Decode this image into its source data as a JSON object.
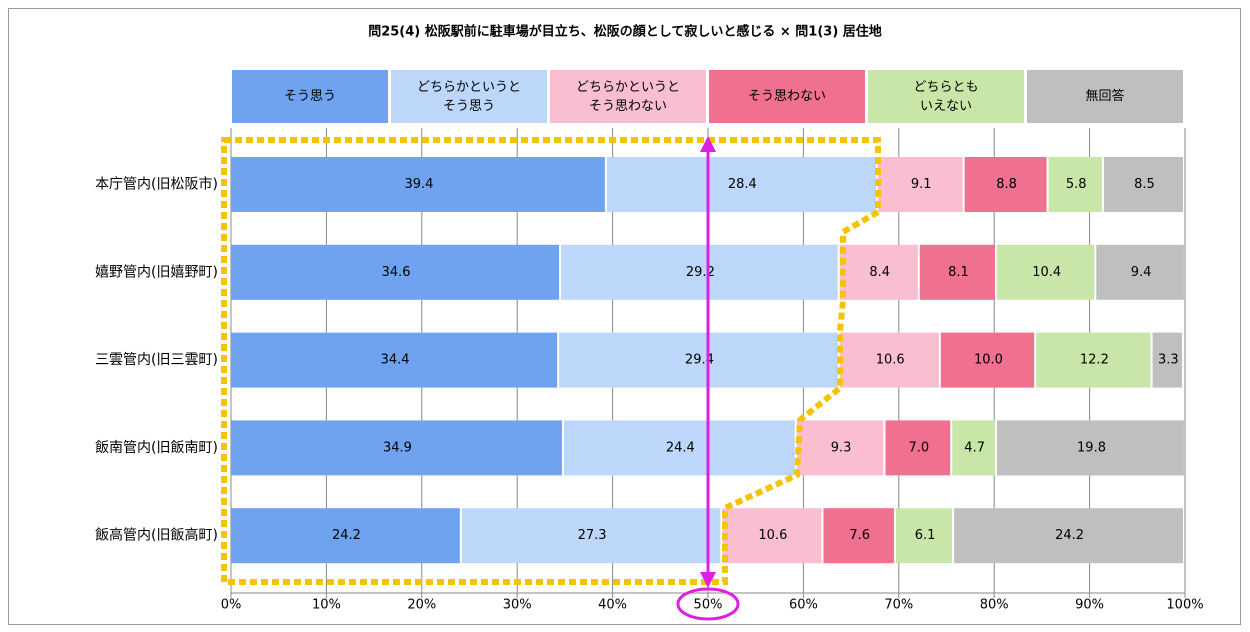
{
  "chart_data": {
    "type": "bar",
    "orientation": "horizontal",
    "stacked": true,
    "title": "問25(4) 松阪駅前に駐車場が目立ち、松阪の顔として寂しいと感じる × 問1(3) 居住地",
    "categories": [
      "本庁管内(旧松阪市)",
      "嬉野管内(旧嬉野町)",
      "三雲管内(旧三雲町)",
      "飯南管内(旧飯南町)",
      "飯高管内(旧飯高町)"
    ],
    "series": [
      {
        "name": "そう思う",
        "color": "#6fa3f0",
        "values": [
          39.4,
          34.6,
          34.4,
          34.9,
          24.2
        ]
      },
      {
        "name": "どちらかというと\nそう思う",
        "color": "#bdd7fb",
        "values": [
          28.4,
          29.2,
          29.4,
          24.4,
          27.3
        ]
      },
      {
        "name": "どちらかというと\nそう思わない",
        "color": "#f9bfd0",
        "values": [
          9.1,
          8.4,
          10.6,
          9.3,
          10.6
        ]
      },
      {
        "name": "そう思わない",
        "color": "#f07090",
        "values": [
          8.8,
          8.1,
          10,
          7,
          7.6
        ],
        "value_labels": [
          "8.8",
          "8.1",
          "10.0",
          "7.0",
          "7.6"
        ]
      },
      {
        "name": "どちらとも\nいえない",
        "color": "#c8e6a8",
        "values": [
          5.8,
          10.4,
          12.2,
          4.7,
          6.1
        ]
      },
      {
        "name": "無回答",
        "color": "#bfbfbf",
        "values": [
          8.5,
          9.4,
          3.3,
          19.8,
          24.2
        ]
      }
    ],
    "xlim": [
      0,
      100
    ],
    "xticks": [
      {
        "value": 0,
        "label": "0%"
      },
      {
        "value": 10,
        "label": "10%"
      },
      {
        "value": 20,
        "label": "20%"
      },
      {
        "value": 30,
        "label": "30%"
      },
      {
        "value": 40,
        "label": "40%"
      },
      {
        "value": 50,
        "label": "50%"
      },
      {
        "value": 60,
        "label": "60%"
      },
      {
        "value": 70,
        "label": "70%"
      },
      {
        "value": 80,
        "label": "80%"
      },
      {
        "value": 90,
        "label": "90%"
      },
      {
        "value": 100,
        "label": "100%"
      }
    ],
    "grid": true
  }
}
